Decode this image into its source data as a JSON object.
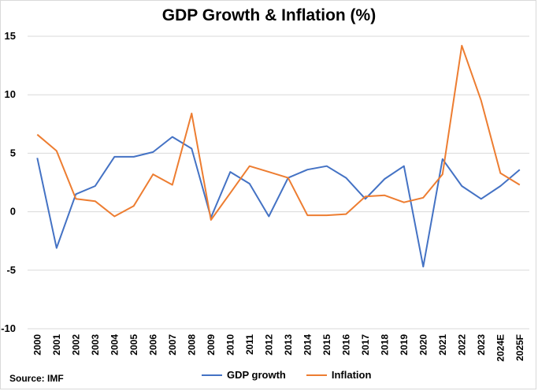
{
  "chart_data": {
    "type": "line",
    "title": "GDP Growth & Inflation (%)",
    "source": "Source: IMF",
    "categories": [
      "2000",
      "2001",
      "2002",
      "2003",
      "2004",
      "2005",
      "2006",
      "2007",
      "2008",
      "2009",
      "2010",
      "2011",
      "2012",
      "2013",
      "2014",
      "2015",
      "2016",
      "2017",
      "2018",
      "2019",
      "2020",
      "2021",
      "2022",
      "2023",
      "2024E",
      "2025F"
    ],
    "ylim": [
      -10,
      15
    ],
    "yticks": [
      -10,
      -5,
      0,
      5,
      10,
      15
    ],
    "grid": true,
    "legend_position": "bottom",
    "series": [
      {
        "name": "GDP growth",
        "color": "#4472C4",
        "values": [
          4.6,
          -3.1,
          1.5,
          2.2,
          4.7,
          4.7,
          5.1,
          6.4,
          5.4,
          -0.5,
          3.4,
          2.4,
          -0.4,
          2.9,
          3.6,
          3.9,
          2.9,
          1.1,
          2.8,
          3.9,
          -4.7,
          4.5,
          2.2,
          1.1,
          2.2,
          3.6
        ]
      },
      {
        "name": "Inflation",
        "color": "#ED7D31",
        "values": [
          6.6,
          5.2,
          1.1,
          0.9,
          -0.4,
          0.5,
          3.2,
          2.3,
          8.4,
          -0.7,
          1.6,
          3.9,
          3.4,
          2.9,
          -0.3,
          -0.3,
          -0.2,
          1.3,
          1.4,
          0.8,
          1.2,
          3.2,
          14.2,
          9.5,
          3.3,
          2.3
        ]
      }
    ]
  }
}
